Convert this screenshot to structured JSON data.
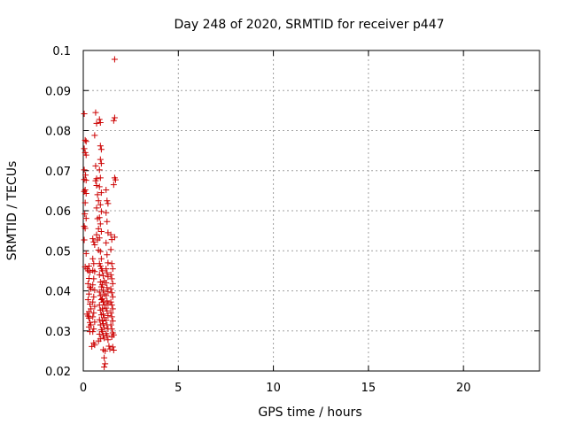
{
  "chart_data": {
    "type": "scatter",
    "title": "Day 248 of 2020, SRMTID for receiver p447",
    "xlabel": "GPS time / hours",
    "ylabel": "SRMTID / TECUs",
    "xlim": [
      0,
      24
    ],
    "ylim": [
      0.02,
      0.1
    ],
    "x_ticks": [
      0,
      5,
      10,
      15,
      20
    ],
    "x_tick_labels": [
      "0",
      "5",
      "10",
      "15",
      "20"
    ],
    "y_ticks": [
      0.02,
      0.03,
      0.04,
      0.05,
      0.06,
      0.07,
      0.08,
      0.09,
      0.1
    ],
    "y_tick_labels": [
      "0.02",
      "0.03",
      "0.04",
      "0.05",
      "0.06",
      "0.07",
      "0.08",
      "0.09",
      "0.1"
    ],
    "grid": true,
    "marker": "+",
    "color": "#cc0000",
    "series": [
      {
        "name": "p447",
        "points": [
          [
            0.05,
            0.0842
          ],
          [
            0.1,
            0.0776
          ],
          [
            0.15,
            0.0773
          ],
          [
            0.05,
            0.0755
          ],
          [
            0.1,
            0.0745
          ],
          [
            0.15,
            0.0739
          ],
          [
            0.05,
            0.0702
          ],
          [
            0.12,
            0.0689
          ],
          [
            0.05,
            0.0678
          ],
          [
            0.15,
            0.0676
          ],
          [
            0.1,
            0.0652
          ],
          [
            0.05,
            0.0648
          ],
          [
            0.15,
            0.0643
          ],
          [
            0.1,
            0.062
          ],
          [
            0.08,
            0.0592
          ],
          [
            0.15,
            0.0581
          ],
          [
            0.05,
            0.0561
          ],
          [
            0.1,
            0.0556
          ],
          [
            0.05,
            0.0527
          ],
          [
            0.15,
            0.0493
          ],
          [
            0.1,
            0.046
          ],
          [
            0.2,
            0.0455
          ],
          [
            0.25,
            0.045
          ],
          [
            0.3,
            0.0462
          ],
          [
            0.35,
            0.0447
          ],
          [
            0.3,
            0.0431
          ],
          [
            0.25,
            0.0418
          ],
          [
            0.35,
            0.0409
          ],
          [
            0.4,
            0.0405
          ],
          [
            0.3,
            0.0392
          ],
          [
            0.25,
            0.0378
          ],
          [
            0.35,
            0.0367
          ],
          [
            0.4,
            0.0355
          ],
          [
            0.3,
            0.0348
          ],
          [
            0.2,
            0.0342
          ],
          [
            0.25,
            0.0337
          ],
          [
            0.3,
            0.0332
          ],
          [
            0.35,
            0.0321
          ],
          [
            0.4,
            0.0315
          ],
          [
            0.3,
            0.031
          ],
          [
            0.35,
            0.0298
          ],
          [
            0.45,
            0.0261
          ],
          [
            0.55,
            0.027
          ],
          [
            0.6,
            0.0265
          ],
          [
            0.5,
            0.053
          ],
          [
            0.55,
            0.0522
          ],
          [
            0.6,
            0.0515
          ],
          [
            0.5,
            0.048
          ],
          [
            0.55,
            0.0468
          ],
          [
            0.5,
            0.0451
          ],
          [
            0.6,
            0.0448
          ],
          [
            0.55,
            0.043
          ],
          [
            0.5,
            0.0415
          ],
          [
            0.6,
            0.0402
          ],
          [
            0.55,
            0.0385
          ],
          [
            0.5,
            0.0372
          ],
          [
            0.6,
            0.0361
          ],
          [
            0.55,
            0.0345
          ],
          [
            0.5,
            0.0335
          ],
          [
            0.6,
            0.0322
          ],
          [
            0.55,
            0.0305
          ],
          [
            0.5,
            0.0298
          ],
          [
            0.65,
            0.0845
          ],
          [
            0.7,
            0.0818
          ],
          [
            0.6,
            0.0788
          ],
          [
            0.65,
            0.0712
          ],
          [
            0.7,
            0.068
          ],
          [
            0.65,
            0.0675
          ],
          [
            0.7,
            0.0663
          ],
          [
            0.75,
            0.064
          ],
          [
            0.8,
            0.0625
          ],
          [
            0.7,
            0.0607
          ],
          [
            0.75,
            0.058
          ],
          [
            0.8,
            0.0555
          ],
          [
            0.7,
            0.054
          ],
          [
            0.75,
            0.0527
          ],
          [
            0.8,
            0.0502
          ],
          [
            0.85,
            0.0828
          ],
          [
            0.9,
            0.082
          ],
          [
            0.9,
            0.0762
          ],
          [
            0.95,
            0.0753
          ],
          [
            0.9,
            0.0728
          ],
          [
            0.95,
            0.0718
          ],
          [
            0.85,
            0.0702
          ],
          [
            0.9,
            0.0682
          ],
          [
            0.85,
            0.066
          ],
          [
            0.95,
            0.0645
          ],
          [
            0.9,
            0.0615
          ],
          [
            0.95,
            0.0598
          ],
          [
            0.85,
            0.0583
          ],
          [
            0.9,
            0.0567
          ],
          [
            0.95,
            0.0548
          ],
          [
            0.85,
            0.0532
          ],
          [
            0.9,
            0.0498
          ],
          [
            0.95,
            0.048
          ],
          [
            0.85,
            0.0468
          ],
          [
            0.9,
            0.0462
          ],
          [
            0.95,
            0.0455
          ],
          [
            0.85,
            0.044
          ],
          [
            0.9,
            0.0422
          ],
          [
            0.95,
            0.041
          ],
          [
            0.85,
            0.0397
          ],
          [
            0.9,
            0.0388
          ],
          [
            0.95,
            0.0378
          ],
          [
            0.85,
            0.0365
          ],
          [
            0.9,
            0.0352
          ],
          [
            0.95,
            0.034
          ],
          [
            0.85,
            0.0328
          ],
          [
            0.9,
            0.0315
          ],
          [
            0.95,
            0.0303
          ],
          [
            0.85,
            0.0292
          ],
          [
            0.9,
            0.028
          ],
          [
            0.8,
            0.0275
          ],
          [
            1.0,
            0.045
          ],
          [
            1.05,
            0.0438
          ],
          [
            1.1,
            0.0425
          ],
          [
            1.0,
            0.0415
          ],
          [
            1.05,
            0.0402
          ],
          [
            1.1,
            0.0392
          ],
          [
            1.0,
            0.038
          ],
          [
            1.05,
            0.0372
          ],
          [
            1.1,
            0.0365
          ],
          [
            1.0,
            0.0355
          ],
          [
            1.05,
            0.0342
          ],
          [
            1.1,
            0.0333
          ],
          [
            1.0,
            0.0325
          ],
          [
            1.05,
            0.0318
          ],
          [
            1.1,
            0.0308
          ],
          [
            1.0,
            0.0298
          ],
          [
            1.05,
            0.0288
          ],
          [
            1.1,
            0.0282
          ],
          [
            1.05,
            0.0253
          ],
          [
            1.1,
            0.0233
          ],
          [
            1.15,
            0.0218
          ],
          [
            1.1,
            0.021
          ],
          [
            1.15,
            0.025
          ],
          [
            1.2,
            0.0652
          ],
          [
            1.25,
            0.0625
          ],
          [
            1.3,
            0.0618
          ],
          [
            1.2,
            0.0595
          ],
          [
            1.25,
            0.0573
          ],
          [
            1.3,
            0.0545
          ],
          [
            1.2,
            0.052
          ],
          [
            1.25,
            0.049
          ],
          [
            1.3,
            0.047
          ],
          [
            1.2,
            0.0455
          ],
          [
            1.25,
            0.0445
          ],
          [
            1.3,
            0.0435
          ],
          [
            1.2,
            0.042
          ],
          [
            1.25,
            0.0408
          ],
          [
            1.3,
            0.0398
          ],
          [
            1.2,
            0.0388
          ],
          [
            1.25,
            0.0375
          ],
          [
            1.3,
            0.0368
          ],
          [
            1.2,
            0.0357
          ],
          [
            1.25,
            0.035
          ],
          [
            1.3,
            0.0338
          ],
          [
            1.2,
            0.0327
          ],
          [
            1.25,
            0.0315
          ],
          [
            1.3,
            0.0305
          ],
          [
            1.2,
            0.0293
          ],
          [
            1.25,
            0.0288
          ],
          [
            1.3,
            0.0278
          ],
          [
            1.35,
            0.0262
          ],
          [
            1.4,
            0.0255
          ],
          [
            1.45,
            0.054
          ],
          [
            1.5,
            0.0528
          ],
          [
            1.45,
            0.0503
          ],
          [
            1.5,
            0.0468
          ],
          [
            1.55,
            0.0455
          ],
          [
            1.45,
            0.044
          ],
          [
            1.5,
            0.043
          ],
          [
            1.55,
            0.0418
          ],
          [
            1.45,
            0.0405
          ],
          [
            1.5,
            0.0395
          ],
          [
            1.55,
            0.0385
          ],
          [
            1.45,
            0.0372
          ],
          [
            1.5,
            0.0365
          ],
          [
            1.55,
            0.0355
          ],
          [
            1.45,
            0.0345
          ],
          [
            1.5,
            0.0335
          ],
          [
            1.55,
            0.0325
          ],
          [
            1.45,
            0.0315
          ],
          [
            1.5,
            0.0305
          ],
          [
            1.55,
            0.0295
          ],
          [
            1.5,
            0.0285
          ],
          [
            1.55,
            0.026
          ],
          [
            1.6,
            0.0252
          ],
          [
            1.65,
            0.0978
          ],
          [
            1.65,
            0.0832
          ],
          [
            1.6,
            0.0825
          ],
          [
            1.65,
            0.0682
          ],
          [
            1.7,
            0.0677
          ],
          [
            1.6,
            0.0665
          ],
          [
            1.65,
            0.0534
          ],
          [
            1.6,
            0.029
          ]
        ]
      }
    ]
  }
}
